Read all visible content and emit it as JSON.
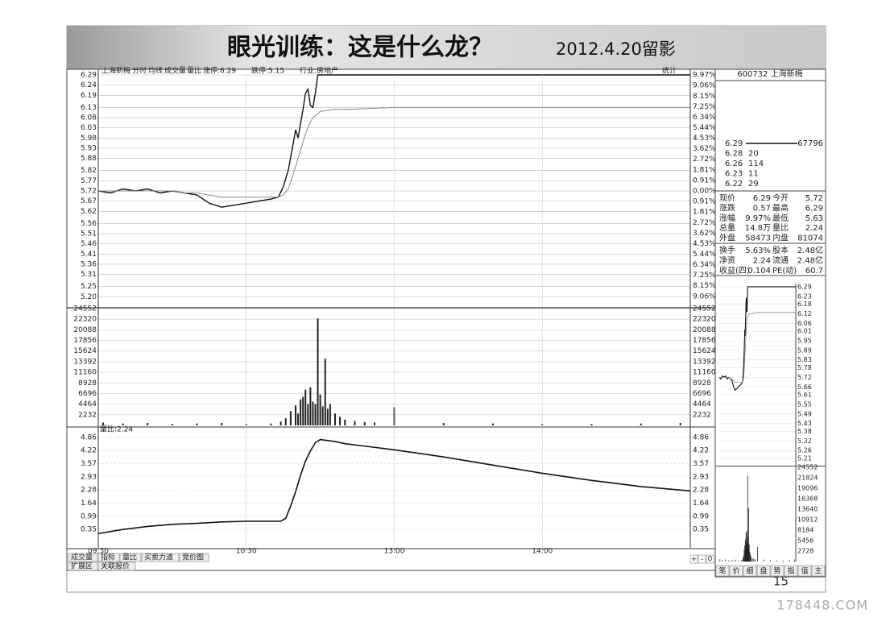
{
  "header": {
    "title": "眼光训练：这是什么龙？",
    "date": "2012.4.20留影",
    "page_number": "15",
    "watermark": "178448.COM"
  },
  "chart_data": [
    {
      "type": "line",
      "title": "上海新梅",
      "annotations": [
        "成交量",
        "量比",
        "涨停:6.29",
        "跌停:5.15",
        "行业:房地产",
        "统计"
      ],
      "x": [
        0,
        5,
        10,
        15,
        20,
        25,
        30,
        35,
        40,
        45,
        50,
        55,
        60,
        65,
        70,
        73,
        75,
        77,
        79,
        80,
        81,
        82,
        83,
        84,
        85,
        86,
        87,
        88,
        89,
        90,
        95,
        100,
        120,
        150,
        180,
        210,
        240
      ],
      "xlim": [
        0,
        240
      ],
      "ylim": [
        5.15,
        6.29
      ],
      "yticks": [
        6.29,
        6.24,
        6.19,
        6.13,
        6.08,
        6.03,
        5.98,
        5.93,
        5.88,
        5.82,
        5.77,
        5.72,
        5.67,
        5.62,
        5.56,
        5.51,
        5.46,
        5.41,
        5.36,
        5.31,
        5.25,
        {
          "value": 5.2,
          "label": "5.20"
        }
      ],
      "y2lim": [
        -9.97,
        9.97
      ],
      "y2ticks": [
        {
          "value": 9.97,
          "label": "9.97%"
        },
        {
          "value": 9.06,
          "label": "9.06%"
        },
        {
          "value": 8.15,
          "label": "8.15%"
        },
        {
          "value": 7.25,
          "label": "7.25%"
        },
        {
          "value": 6.34,
          "label": "6.34%"
        },
        {
          "value": 5.44,
          "label": "5.44%"
        },
        {
          "value": 4.53,
          "label": "4.53%"
        },
        {
          "value": 3.62,
          "label": "3.62%"
        },
        {
          "value": 2.72,
          "label": "2.72%"
        },
        {
          "value": 1.81,
          "label": "1.81%"
        },
        {
          "value": 0.91,
          "label": "0.91%"
        },
        {
          "value": 0,
          "label": "0.00%"
        },
        {
          "value": -0.91,
          "label": "0.91%"
        },
        {
          "value": -1.81,
          "label": "1.81%"
        },
        {
          "value": -2.72,
          "label": "2.72%"
        },
        {
          "value": -3.62,
          "label": "3.62%"
        },
        {
          "value": -4.53,
          "label": "4.53%"
        },
        {
          "value": -5.44,
          "label": "5.44%"
        },
        {
          "value": -6.34,
          "label": "6.34%"
        },
        {
          "value": -7.25,
          "label": "7.25%"
        },
        {
          "value": -8.15,
          "label": "8.15%"
        },
        {
          "value": -9.06,
          "label": "9.06%"
        }
      ],
      "grid": true,
      "series": [
        {
          "name": "分时",
          "color": "#111111",
          "values": [
            5.72,
            5.71,
            5.73,
            5.72,
            5.73,
            5.71,
            5.72,
            5.71,
            5.7,
            5.66,
            5.64,
            5.65,
            5.66,
            5.67,
            5.68,
            5.69,
            5.74,
            5.82,
            5.95,
            6.02,
            5.98,
            6.05,
            6.12,
            6.2,
            6.22,
            6.14,
            6.13,
            6.2,
            6.29,
            6.29,
            6.29,
            6.29,
            6.29,
            6.29,
            6.29,
            6.29,
            6.29
          ]
        },
        {
          "name": "均线",
          "color": "#888888",
          "values": [
            5.72,
            5.72,
            5.72,
            5.72,
            5.72,
            5.72,
            5.72,
            5.71,
            5.71,
            5.7,
            5.69,
            5.69,
            5.69,
            5.69,
            5.69,
            5.69,
            5.7,
            5.73,
            5.8,
            5.84,
            5.88,
            5.92,
            5.96,
            6.0,
            6.03,
            6.06,
            6.08,
            6.09,
            6.1,
            6.11,
            6.12,
            6.12,
            6.13,
            6.13,
            6.13,
            6.13,
            6.13
          ]
        }
      ]
    },
    {
      "type": "bar",
      "color": "#222222",
      "x": [
        2,
        10,
        20,
        30,
        40,
        50,
        60,
        70,
        74,
        76,
        78,
        80,
        81,
        82,
        83,
        84,
        85,
        86,
        87,
        88,
        89,
        90,
        91,
        92,
        93,
        94,
        96,
        98,
        100,
        104,
        108,
        112,
        120,
        140,
        160,
        180,
        200,
        220,
        236
      ],
      "values": [
        600,
        400,
        500,
        300,
        400,
        500,
        300,
        400,
        800,
        1500,
        3000,
        4200,
        2500,
        5500,
        6000,
        7500,
        4500,
        8000,
        5000,
        4500,
        22500,
        6500,
        4000,
        14000,
        3500,
        4500,
        2500,
        1800,
        1200,
        900,
        700,
        600,
        3800,
        500,
        400,
        300,
        300,
        400,
        500
      ],
      "xlim": [
        0,
        240
      ],
      "ylim": [
        0,
        24552
      ],
      "yticks": [
        24552,
        22320,
        20088,
        17856,
        15624,
        13392,
        11160,
        8928,
        6696,
        4464,
        2232
      ],
      "grid": true
    },
    {
      "type": "line",
      "title": "量比:2.24",
      "x": [
        0,
        10,
        20,
        30,
        40,
        50,
        60,
        70,
        74,
        76,
        78,
        80,
        82,
        84,
        86,
        88,
        90,
        92,
        96,
        100,
        110,
        120,
        140,
        160,
        180,
        200,
        220,
        240
      ],
      "xlim": [
        0,
        240
      ],
      "xticks": [
        {
          "value": 0,
          "label": "09:30"
        },
        {
          "value": 60,
          "label": "10:30"
        },
        {
          "value": 120,
          "label": "13:00"
        },
        {
          "value": 180,
          "label": "14:00"
        }
      ],
      "ylim": [
        -0.55,
        5.05
      ],
      "yticks": [
        4.86,
        4.22,
        3.57,
        2.93,
        2.28,
        1.64,
        0.99,
        0.35
      ],
      "grid": true,
      "series": [
        {
          "color": "#111111",
          "values": [
            0.15,
            0.35,
            0.5,
            0.6,
            0.65,
            0.72,
            0.75,
            0.75,
            0.75,
            0.9,
            1.5,
            2.2,
            3.0,
            3.7,
            4.2,
            4.6,
            4.75,
            4.72,
            4.65,
            4.55,
            4.4,
            4.25,
            3.9,
            3.5,
            3.1,
            2.75,
            2.45,
            2.24
          ]
        }
      ]
    },
    {
      "type": "line",
      "ylim": [
        5.17,
        6.31
      ],
      "yticks": [
        6.29,
        6.23,
        6.18,
        6.12,
        6.06,
        6.01,
        5.95,
        5.89,
        5.83,
        5.78,
        5.72,
        5.66,
        5.61,
        5.55,
        5.49,
        5.43,
        5.38,
        5.32,
        5.26,
        5.21
      ],
      "y2lim": [
        0,
        24552
      ],
      "y2ticks": [
        24552,
        21824,
        19096,
        16368,
        13640,
        10912,
        8184,
        5456,
        2728
      ]
    }
  ],
  "tabs": {
    "row1": [
      "成交量",
      "指标",
      "量比",
      "买卖力道",
      "竞价图"
    ],
    "row2": [
      "扩展区",
      "关联报价"
    ],
    "zoom": [
      "+",
      "-",
      "0"
    ]
  },
  "side_panel": {
    "title": "600732 上海新梅",
    "order_book": [
      [
        "6.29",
        "67796"
      ],
      [
        "6.28",
        "20"
      ],
      [
        "6.26",
        "114"
      ],
      [
        "6.23",
        "11"
      ],
      [
        "6.22",
        "29"
      ]
    ],
    "quote": [
      [
        "现价",
        "6.29",
        "今开",
        "5.72"
      ],
      [
        "涨跌",
        "0.57",
        "最高",
        "6.29"
      ],
      [
        "涨幅",
        "9.97%",
        "最低",
        "5.63"
      ],
      [
        "总量",
        "14.8万",
        "量比",
        "2.24"
      ],
      [
        "外盘",
        "58473",
        "内盘",
        "81074"
      ],
      [
        "换手",
        "5.63%",
        "股本",
        "2.48亿"
      ],
      [
        "净资",
        "2.24",
        "流通",
        "2.48亿"
      ],
      [
        "收益(四)",
        "0.104",
        "PE(动)",
        "60.7"
      ]
    ],
    "tabs": [
      "笔",
      "价",
      "细",
      "盘",
      "势",
      "指",
      "值",
      "主"
    ]
  }
}
